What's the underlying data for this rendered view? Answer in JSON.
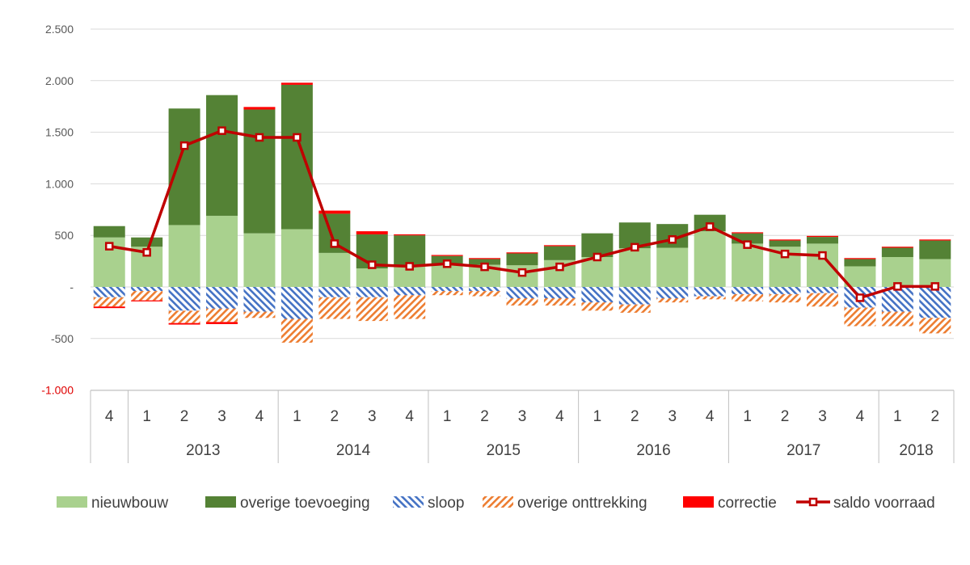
{
  "chart_data": {
    "type": "bar",
    "stacked": true,
    "title": "",
    "xlabel": "",
    "ylabel": "",
    "ylim": [
      -1000,
      2500
    ],
    "y_ticks": [
      2500,
      2000,
      1500,
      1000,
      500,
      0,
      -500,
      -1000
    ],
    "y_tick_labels": [
      "2.500",
      "2.000",
      "1.500",
      "1.000",
      "500",
      "-",
      "-500",
      "-1.000"
    ],
    "grid": true,
    "legend_position": "bottom",
    "categories": [
      "4",
      "1",
      "2",
      "3",
      "4",
      "1",
      "2",
      "3",
      "4",
      "1",
      "2",
      "3",
      "4",
      "1",
      "2",
      "3",
      "4",
      "1",
      "2",
      "3",
      "4",
      "1",
      "2"
    ],
    "groups": [
      {
        "label": "",
        "count": 1
      },
      {
        "label": "2013",
        "count": 4
      },
      {
        "label": "2014",
        "count": 4
      },
      {
        "label": "2015",
        "count": 4
      },
      {
        "label": "2016",
        "count": 4
      },
      {
        "label": "2017",
        "count": 4
      },
      {
        "label": "2018",
        "count": 2
      }
    ],
    "series": [
      {
        "name": "nieuwbouw",
        "kind": "bar",
        "color": "#a9d18e",
        "pattern": "solid",
        "values": [
          480,
          390,
          600,
          690,
          520,
          560,
          330,
          180,
          200,
          220,
          215,
          210,
          260,
          290,
          375,
          380,
          540,
          420,
          390,
          420,
          200,
          290,
          270
        ]
      },
      {
        "name": "overige toevoeging",
        "kind": "bar",
        "color": "#548235",
        "pattern": "solid",
        "values": [
          110,
          90,
          1130,
          1170,
          1200,
          1400,
          380,
          330,
          300,
          80,
          55,
          115,
          135,
          230,
          250,
          230,
          160,
          100,
          60,
          65,
          70,
          90,
          180
        ]
      },
      {
        "name": "sloop",
        "kind": "bar",
        "color": "#4472c4",
        "pattern": "hatch-blue",
        "values": [
          -100,
          -40,
          -230,
          -210,
          -240,
          -310,
          -100,
          -100,
          -80,
          -40,
          -40,
          -110,
          -110,
          -150,
          -170,
          -110,
          -90,
          -70,
          -70,
          -60,
          -200,
          -240,
          -300
        ]
      },
      {
        "name": "overige onttrekking",
        "kind": "bar",
        "color": "#f4b183",
        "pattern": "hatch-orange",
        "values": [
          -90,
          -90,
          -120,
          -130,
          -60,
          -230,
          -210,
          -230,
          -230,
          -40,
          -50,
          -70,
          -70,
          -80,
          -80,
          -40,
          -30,
          -70,
          -80,
          -130,
          -180,
          -140,
          -150
        ]
      },
      {
        "name": "correctie",
        "kind": "bar",
        "color": "#ff0000",
        "pattern": "solid",
        "values": [
          -15,
          -10,
          -15,
          -20,
          25,
          20,
          30,
          30,
          10,
          10,
          10,
          10,
          10,
          0,
          0,
          0,
          0,
          10,
          10,
          10,
          10,
          10,
          10
        ]
      },
      {
        "name": "saldo voorraad",
        "kind": "line",
        "color": "#c00000",
        "values": [
          395,
          335,
          1370,
          1515,
          1450,
          1450,
          420,
          215,
          200,
          225,
          195,
          140,
          195,
          290,
          385,
          460,
          585,
          410,
          320,
          305,
          -105,
          5,
          5
        ]
      }
    ]
  }
}
